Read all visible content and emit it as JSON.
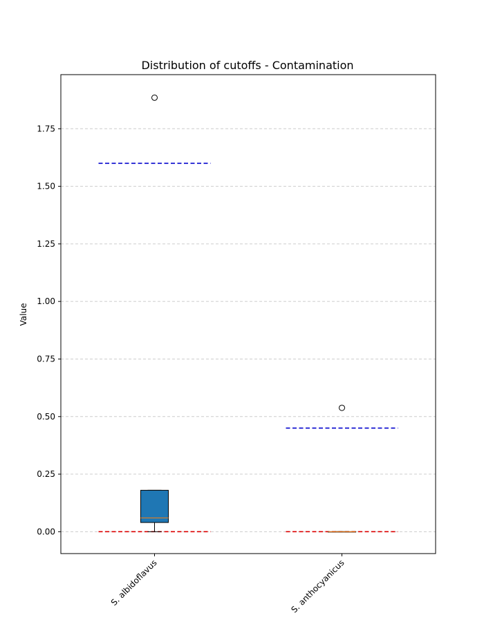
{
  "chart_data": {
    "type": "box",
    "title": "Distribution of cutoffs - Contamination",
    "xlabel": "",
    "ylabel": "Value",
    "ylim": [
      -0.095,
      1.985
    ],
    "grid": "y-dashed",
    "legend": "none",
    "categories": [
      "S. albidoflavus",
      "S. anthocyanicus"
    ],
    "yticks": [
      {
        "value": 0.0,
        "label": "0.00"
      },
      {
        "value": 0.25,
        "label": "0.25"
      },
      {
        "value": 0.5,
        "label": "0.50"
      },
      {
        "value": 0.75,
        "label": "0.75"
      },
      {
        "value": 1.0,
        "label": "1.00"
      },
      {
        "value": 1.25,
        "label": "1.25"
      },
      {
        "value": 1.5,
        "label": "1.50"
      },
      {
        "value": 1.75,
        "label": "1.75"
      }
    ],
    "boxes": [
      {
        "category": "S. albidoflavus",
        "whisker_low": 0.0,
        "q1": 0.04,
        "median": 0.06,
        "q3": 0.18,
        "whisker_high": 0.18,
        "outliers": [
          1.885
        ]
      },
      {
        "category": "S. anthocyanicus",
        "whisker_low": 0.0,
        "q1": 0.0,
        "median": 0.0,
        "q3": 0.0,
        "whisker_high": 0.0,
        "outliers": [
          0.538
        ]
      }
    ],
    "reference_lines": [
      {
        "category": "S. albidoflavus",
        "upper": 1.6,
        "lower": 0.0
      },
      {
        "category": "S. anthocyanicus",
        "upper": 0.45,
        "lower": 0.0
      }
    ],
    "colors": {
      "box_fill": "#1f77b4",
      "median": "#ff7f0e",
      "upper_line": "#0000cc",
      "lower_line": "#dd0000",
      "grid": "#cccccc"
    }
  }
}
